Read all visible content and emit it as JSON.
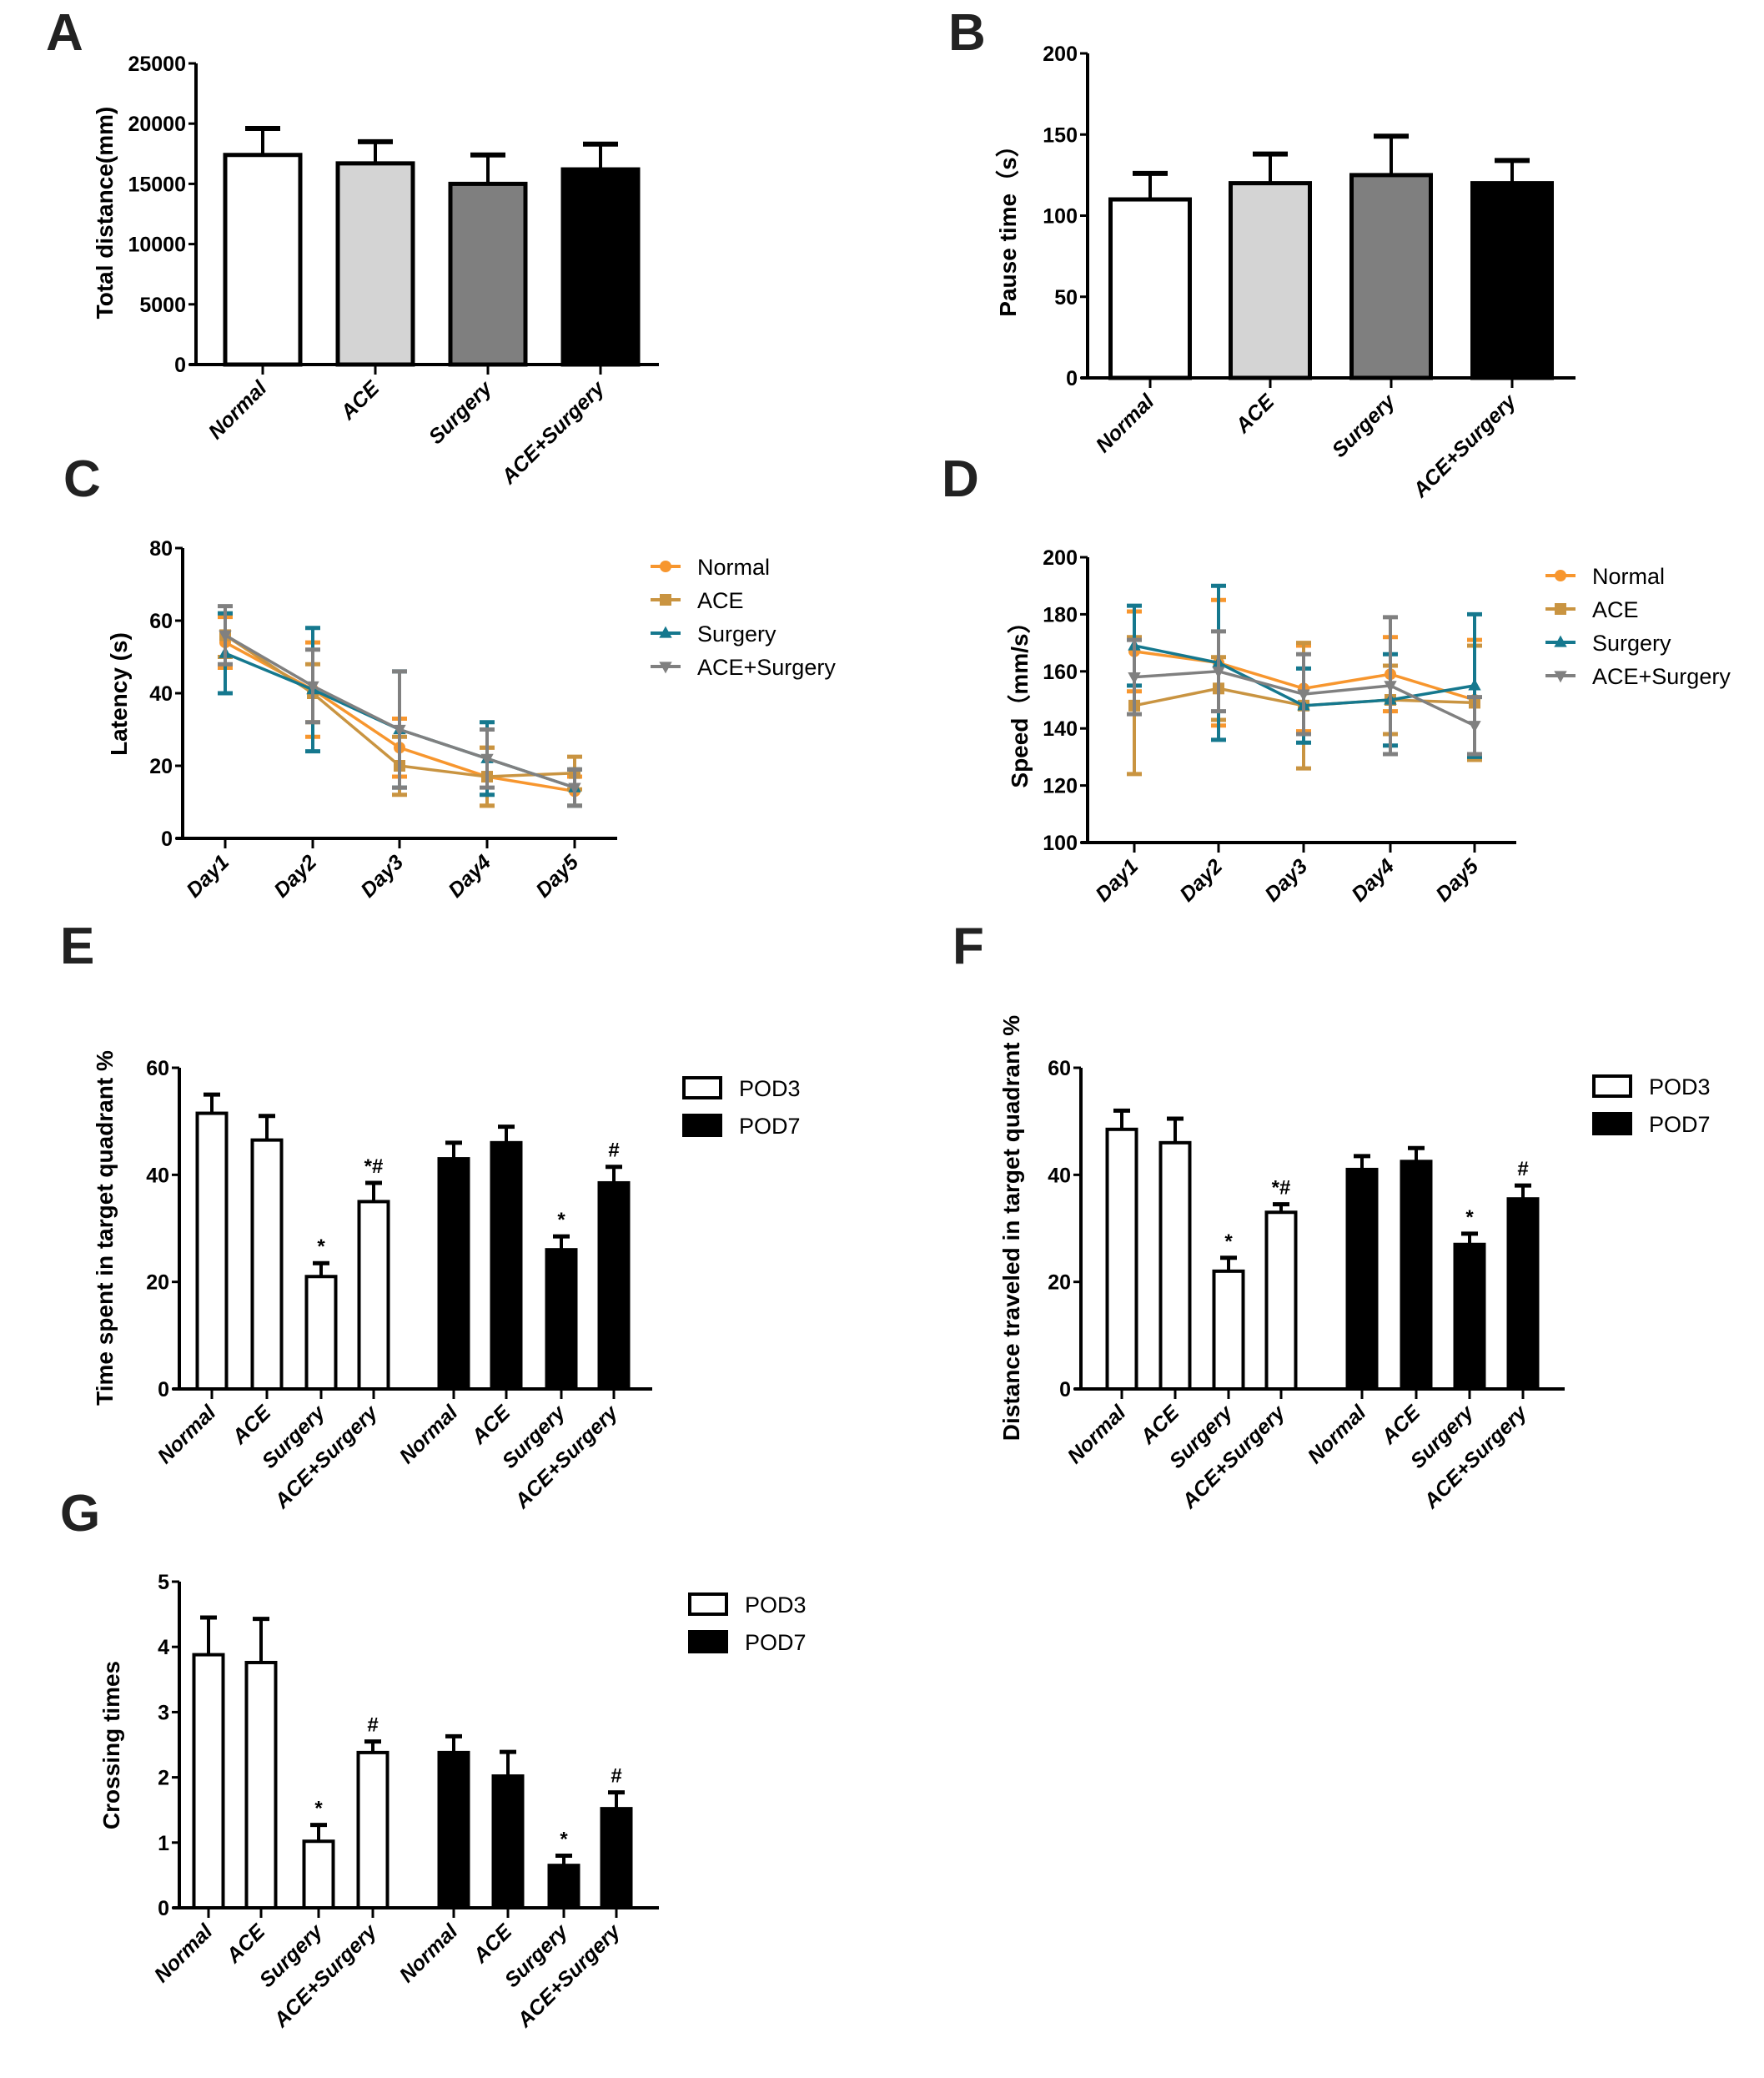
{
  "panel_labels": [
    "A",
    "B",
    "C",
    "D",
    "E",
    "F",
    "G"
  ],
  "chart_data": [
    {
      "type": "bar",
      "panel": "A",
      "ylabel": "Total distance(mm)",
      "ylim": [
        0,
        25000
      ],
      "yticks": [
        0,
        5000,
        10000,
        15000,
        20000,
        25000
      ],
      "categories": [
        "Normal",
        "ACE",
        "Surgery",
        "ACE+Surgery"
      ],
      "values": [
        17400,
        16700,
        15000,
        16200
      ],
      "errors": [
        2200,
        1800,
        2400,
        2100
      ],
      "fills": [
        "#ffffff",
        "#d4d4d4",
        "#7f7f7f",
        "#000000"
      ]
    },
    {
      "type": "bar",
      "panel": "B",
      "ylabel": "Pause time（s）",
      "ylim": [
        0,
        200
      ],
      "yticks": [
        0,
        50,
        100,
        150,
        200
      ],
      "categories": [
        "Normal",
        "ACE",
        "Surgery",
        "ACE+Surgery"
      ],
      "values": [
        110,
        120,
        125,
        120
      ],
      "errors": [
        16,
        18,
        24,
        14
      ],
      "fills": [
        "#ffffff",
        "#d4d4d4",
        "#7f7f7f",
        "#000000"
      ]
    },
    {
      "type": "line",
      "panel": "C",
      "ylabel": "Latency (s)",
      "ylim": [
        0,
        80
      ],
      "yticks": [
        0,
        20,
        40,
        60,
        80
      ],
      "categories": [
        "Day1",
        "Day2",
        "Day3",
        "Day4",
        "Day5"
      ],
      "legend_position": "right",
      "series": [
        {
          "name": "Normal",
          "color": "#f7962e",
          "marker": "circle",
          "values": [
            54,
            41,
            25,
            17,
            13
          ],
          "errors": [
            7,
            13,
            8,
            8,
            4
          ]
        },
        {
          "name": "ACE",
          "color": "#c99441",
          "marker": "square",
          "values": [
            56,
            40,
            20,
            17,
            18
          ],
          "errors": [
            6,
            8,
            8,
            8,
            4.5
          ]
        },
        {
          "name": "Surgery",
          "color": "#15788e",
          "marker": "triangle-up",
          "values": [
            51,
            41,
            30,
            22,
            14
          ],
          "errors": [
            11,
            17,
            16,
            10,
            5
          ]
        },
        {
          "name": "ACE+Surgery",
          "color": "#808080",
          "marker": "triangle-down",
          "values": [
            56,
            42,
            30,
            22,
            14
          ],
          "errors": [
            8,
            10,
            16,
            8,
            5
          ]
        }
      ]
    },
    {
      "type": "line",
      "panel": "D",
      "ylabel": "Speed（mm/s）",
      "ylim": [
        100,
        200
      ],
      "yticks": [
        100,
        120,
        140,
        160,
        180,
        200
      ],
      "categories": [
        "Day1",
        "Day2",
        "Day3",
        "Day4",
        "Day5"
      ],
      "legend_position": "right",
      "series": [
        {
          "name": "Normal",
          "color": "#f7962e",
          "marker": "circle",
          "values": [
            167,
            163,
            154,
            159,
            150
          ],
          "errors": [
            14,
            22,
            15,
            13,
            21
          ]
        },
        {
          "name": "ACE",
          "color": "#c99441",
          "marker": "square",
          "values": [
            148,
            154,
            148,
            150,
            149
          ],
          "errors": [
            24,
            11,
            22,
            12,
            20
          ]
        },
        {
          "name": "Surgery",
          "color": "#15788e",
          "marker": "triangle-up",
          "values": [
            169,
            163,
            148,
            150,
            155
          ],
          "errors": [
            14,
            27,
            13,
            16,
            25
          ]
        },
        {
          "name": "ACE+Surgery",
          "color": "#808080",
          "marker": "triangle-down",
          "values": [
            158,
            160,
            152,
            155,
            141
          ],
          "errors": [
            13,
            14,
            14,
            24,
            10
          ]
        }
      ]
    },
    {
      "type": "grouped-bar",
      "panel": "E",
      "ylabel": "Time spent in target quadrant %",
      "ylim": [
        0,
        60
      ],
      "yticks": [
        0,
        20,
        40,
        60
      ],
      "categories": [
        "Normal",
        "ACE",
        "Surgery",
        "ACE+Surgery"
      ],
      "legend_position": "right",
      "series": [
        {
          "name": "POD3",
          "fill": "#ffffff",
          "values": [
            51.5,
            46.5,
            21,
            35
          ],
          "errors": [
            3.5,
            4.5,
            2.5,
            3.5
          ],
          "annotations": [
            "",
            "",
            "*",
            "*#"
          ]
        },
        {
          "name": "POD7",
          "fill": "#000000",
          "values": [
            43,
            46,
            26,
            38.5
          ],
          "errors": [
            3,
            3,
            2.5,
            3
          ],
          "annotations": [
            "",
            "",
            "*",
            "#"
          ]
        }
      ]
    },
    {
      "type": "grouped-bar",
      "panel": "F",
      "ylabel": "Distance traveled in target quadrant %",
      "ylim": [
        0,
        60
      ],
      "yticks": [
        0,
        20,
        40,
        60
      ],
      "categories": [
        "Normal",
        "ACE",
        "Surgery",
        "ACE+Surgery"
      ],
      "legend_position": "right",
      "series": [
        {
          "name": "POD3",
          "fill": "#ffffff",
          "values": [
            48.5,
            46,
            22,
            33
          ],
          "errors": [
            3.5,
            4.5,
            2.5,
            1.5
          ],
          "annotations": [
            "",
            "",
            "*",
            "*#"
          ]
        },
        {
          "name": "POD7",
          "fill": "#000000",
          "values": [
            41,
            42.5,
            27,
            35.5
          ],
          "errors": [
            2.5,
            2.5,
            2,
            2.5
          ],
          "annotations": [
            "",
            "",
            "*",
            "#"
          ]
        }
      ]
    },
    {
      "type": "grouped-bar",
      "panel": "G",
      "ylabel": "Crossing times",
      "ylim": [
        0,
        5
      ],
      "yticks": [
        0,
        1,
        2,
        3,
        4,
        5
      ],
      "categories": [
        "Normal",
        "ACE",
        "Surgery",
        "ACE+Surgery"
      ],
      "legend_position": "right",
      "series": [
        {
          "name": "POD3",
          "fill": "#ffffff",
          "values": [
            3.88,
            3.76,
            1.02,
            2.38
          ],
          "errors": [
            0.57,
            0.67,
            0.25,
            0.17
          ],
          "annotations": [
            "",
            "",
            "*",
            "#"
          ]
        },
        {
          "name": "POD7",
          "fill": "#000000",
          "values": [
            2.38,
            2.02,
            0.65,
            1.52
          ],
          "errors": [
            0.25,
            0.37,
            0.15,
            0.25
          ],
          "annotations": [
            "",
            "",
            "*",
            "#"
          ]
        }
      ]
    }
  ]
}
